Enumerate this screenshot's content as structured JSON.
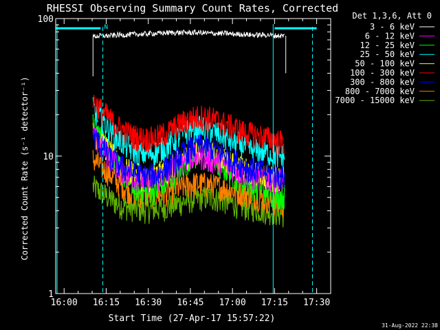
{
  "chart_data": {
    "type": "line",
    "title": "RHESSI Observing Summary Count Rates, Corrected",
    "xlabel": "Start Time (27-Apr-17 15:57:22)",
    "ylabel": "Corrected Count Rate (s⁻¹ detector⁻¹)",
    "yscale": "log",
    "ylim": [
      1,
      100
    ],
    "xlim_minutes": [
      -3,
      95
    ],
    "x_units": "minutes after 16:00",
    "x_tick_labels": [
      "16:00",
      "16:15",
      "16:30",
      "16:45",
      "17:00",
      "17:15",
      "17:30"
    ],
    "x_tick_minutes": [
      0,
      15,
      30,
      45,
      60,
      75,
      90
    ],
    "y_tick_labels": [
      "1",
      "10",
      "100"
    ],
    "y_tick_values": [
      1,
      10,
      100
    ],
    "legend_title": "Det 1,3,6, Att 0",
    "legend_position": "top-right outside",
    "footer": "31-Aug-2022 22:38",
    "grid": false,
    "x": [
      10.3,
      13,
      16,
      19,
      22,
      25,
      28,
      31,
      34,
      37,
      40,
      43,
      46,
      49,
      52,
      55,
      58,
      61,
      64,
      67,
      70,
      73,
      75.5,
      78.5
    ],
    "series": [
      {
        "name": "3 - 6 keV",
        "color": "#ffffff",
        "values": [
          74,
          75,
          75,
          76,
          76,
          77,
          77,
          78,
          78,
          79,
          79,
          79,
          79,
          79,
          78,
          78,
          78,
          77,
          77,
          76,
          76,
          76,
          75,
          75
        ]
      },
      {
        "name": "6 - 12 keV",
        "color": "#ff00ff",
        "values": [
          14,
          12,
          10,
          8.5,
          7.5,
          7,
          6.8,
          6.8,
          7,
          7.5,
          8.5,
          9.5,
          10,
          10,
          9.5,
          9,
          8.5,
          8,
          7.5,
          7,
          7,
          6.8,
          6.8,
          6.8
        ]
      },
      {
        "name": "12 - 25 keV",
        "color": "#00ff00",
        "values": [
          17,
          14,
          11,
          8.5,
          7,
          6,
          5.5,
          5.5,
          5.8,
          6.5,
          7.5,
          9,
          10,
          10,
          9.5,
          8.5,
          8,
          7,
          6.5,
          6,
          6,
          5.5,
          5.2,
          5.2
        ]
      },
      {
        "name": "25 - 50 keV",
        "color": "#00ffff",
        "values": [
          22,
          19,
          16,
          13.5,
          12,
          11,
          10.5,
          10.5,
          11,
          12,
          13.5,
          15,
          16,
          16,
          15.5,
          14.5,
          13.5,
          12.5,
          12,
          11,
          11,
          10.5,
          10,
          10
        ]
      },
      {
        "name": "50 - 100 keV",
        "color": "#ffff00",
        "values": [
          15,
          13,
          11,
          9,
          8,
          7.5,
          7,
          7,
          7.5,
          8,
          9,
          10,
          11,
          11,
          10.5,
          10,
          9.5,
          8.5,
          8,
          7.5,
          7.5,
          7,
          7,
          7
        ]
      },
      {
        "name": "100 - 300 keV",
        "color": "#ff0000",
        "values": [
          25,
          22,
          19,
          16.5,
          15,
          14,
          13.5,
          13.5,
          14,
          15,
          16.5,
          18,
          19,
          19.5,
          19,
          18,
          17,
          16,
          15,
          14.5,
          14,
          13.5,
          13,
          12.5
        ]
      },
      {
        "name": "300 - 800 keV",
        "color": "#0000ff",
        "values": [
          14,
          12,
          10,
          8.8,
          8,
          7.5,
          7.2,
          7.2,
          7.5,
          8.3,
          9.5,
          10.8,
          11.5,
          12,
          11.5,
          11,
          10,
          9.2,
          8.5,
          8,
          7.8,
          7.5,
          7.2,
          7
        ]
      },
      {
        "name": "800 - 7000 keV",
        "color": "#ff7f00",
        "values": [
          9.5,
          8.5,
          7.5,
          6.5,
          5.8,
          5.5,
          5.2,
          5.2,
          5.3,
          5.5,
          5.8,
          6.1,
          6.3,
          6.3,
          6.2,
          6,
          5.8,
          5.6,
          5.4,
          5.2,
          5,
          4.8,
          4.6,
          4.5
        ]
      },
      {
        "name": "7000 - 15000 keV",
        "color": "#60b000",
        "values": [
          6,
          5.5,
          5,
          4.5,
          4.3,
          4.2,
          4.1,
          4.1,
          4.2,
          4.3,
          4.5,
          4.7,
          4.9,
          5,
          5,
          4.9,
          4.7,
          4.5,
          4.3,
          4.2,
          4.1,
          4,
          3.9,
          3.8
        ]
      }
    ],
    "annotations": {
      "attenuator_line": {
        "color": "#00ffff",
        "level": 85,
        "segments_minutes": [
          [
            -3,
            13
          ],
          [
            75,
            90
          ]
        ]
      },
      "flag_letter": "N",
      "vertical_lines_solid_minutes": [
        -2.5,
        74.5
      ],
      "vertical_lines_dashed_minutes": [
        13.8,
        88.5
      ]
    }
  }
}
